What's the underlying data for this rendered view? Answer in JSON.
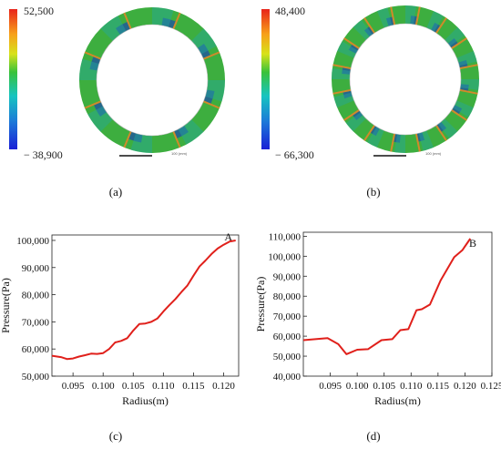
{
  "figure": {
    "colors": {
      "line": "#e0201b",
      "ring_green": "#3dae3f",
      "ring_teal": "#23a8a0",
      "ring_blue": "#1f4fa5",
      "ring_seam": "#d08a2a",
      "axis": "#222222"
    },
    "panels": {
      "a": {
        "caption": "(a)",
        "colorbar": {
          "max_label": "52,500",
          "min_label": "− 38,900"
        },
        "seam_count": 8,
        "scale_bar_label": "100 (mm)"
      },
      "b": {
        "caption": "(b)",
        "colorbar": {
          "max_label": "48,400",
          "min_label": "− 66,300"
        },
        "seam_count": 16,
        "scale_bar_label": "100 (mm)"
      },
      "c": {
        "caption": "(c)"
      },
      "d": {
        "caption": "(d)"
      }
    }
  },
  "chart_data": [
    {
      "type": "line",
      "panel": "c",
      "annotation": "A",
      "xlabel": "Radius(m)",
      "ylabel": "Pressure(Pa)",
      "xlim": [
        0.0915,
        0.1225
      ],
      "ylim": [
        50000,
        102000
      ],
      "xticks": [
        0.095,
        0.1,
        0.105,
        0.11,
        0.115,
        0.12
      ],
      "xtick_labels": [
        "0.095",
        "0.100",
        "0.105",
        "0.110",
        "0.115",
        "0.120"
      ],
      "yticks": [
        50000,
        60000,
        70000,
        80000,
        90000,
        100000
      ],
      "ytick_labels": [
        "50,000",
        "60,000",
        "70,000",
        "80,000",
        "90,000",
        "100,000"
      ],
      "series": [
        {
          "x": [
            0.0915,
            0.093,
            0.094,
            0.095,
            0.096,
            0.097,
            0.098,
            0.099,
            0.1,
            0.101,
            0.102,
            0.103,
            0.104,
            0.105,
            0.106,
            0.107,
            0.108,
            0.109,
            0.11,
            0.111,
            0.112,
            0.113,
            0.114,
            0.115,
            0.116,
            0.117,
            0.118,
            0.119,
            0.12,
            0.121,
            0.122
          ],
          "y": [
            57500,
            57000,
            56300,
            56500,
            57200,
            57700,
            58300,
            58200,
            58500,
            60000,
            62400,
            63000,
            64000,
            66800,
            69200,
            69400,
            70000,
            71200,
            73800,
            76200,
            78400,
            81000,
            83400,
            87000,
            90400,
            92600,
            95000,
            97000,
            98400,
            99600,
            100000
          ]
        }
      ]
    },
    {
      "type": "line",
      "panel": "d",
      "annotation": "B",
      "xlabel": "Radius(m)",
      "ylabel": "Pressure(Pa)",
      "xlim": [
        0.09,
        0.125
      ],
      "ylim": [
        40000,
        112000
      ],
      "xticks": [
        0.095,
        0.1,
        0.105,
        0.11,
        0.115,
        0.12,
        0.125
      ],
      "xtick_labels": [
        "0.095",
        "0.100",
        "0.105",
        "0.110",
        "0.115",
        "0.120",
        "0.125"
      ],
      "yticks": [
        40000,
        50000,
        60000,
        70000,
        80000,
        90000,
        100000,
        110000
      ],
      "ytick_labels": [
        "40,000",
        "50,000",
        "60,000",
        "70,000",
        "80,000",
        "90,000",
        "100,000",
        "110,000"
      ],
      "series": [
        {
          "x": [
            0.09,
            0.0945,
            0.0965,
            0.098,
            0.1,
            0.102,
            0.1045,
            0.1065,
            0.108,
            0.1095,
            0.111,
            0.112,
            0.1135,
            0.1155,
            0.118,
            0.1195,
            0.121
          ],
          "y": [
            58000,
            59000,
            56000,
            51000,
            53200,
            53500,
            58000,
            58500,
            63000,
            63500,
            73000,
            73500,
            75800,
            88000,
            99500,
            103000,
            108800
          ]
        }
      ]
    }
  ]
}
